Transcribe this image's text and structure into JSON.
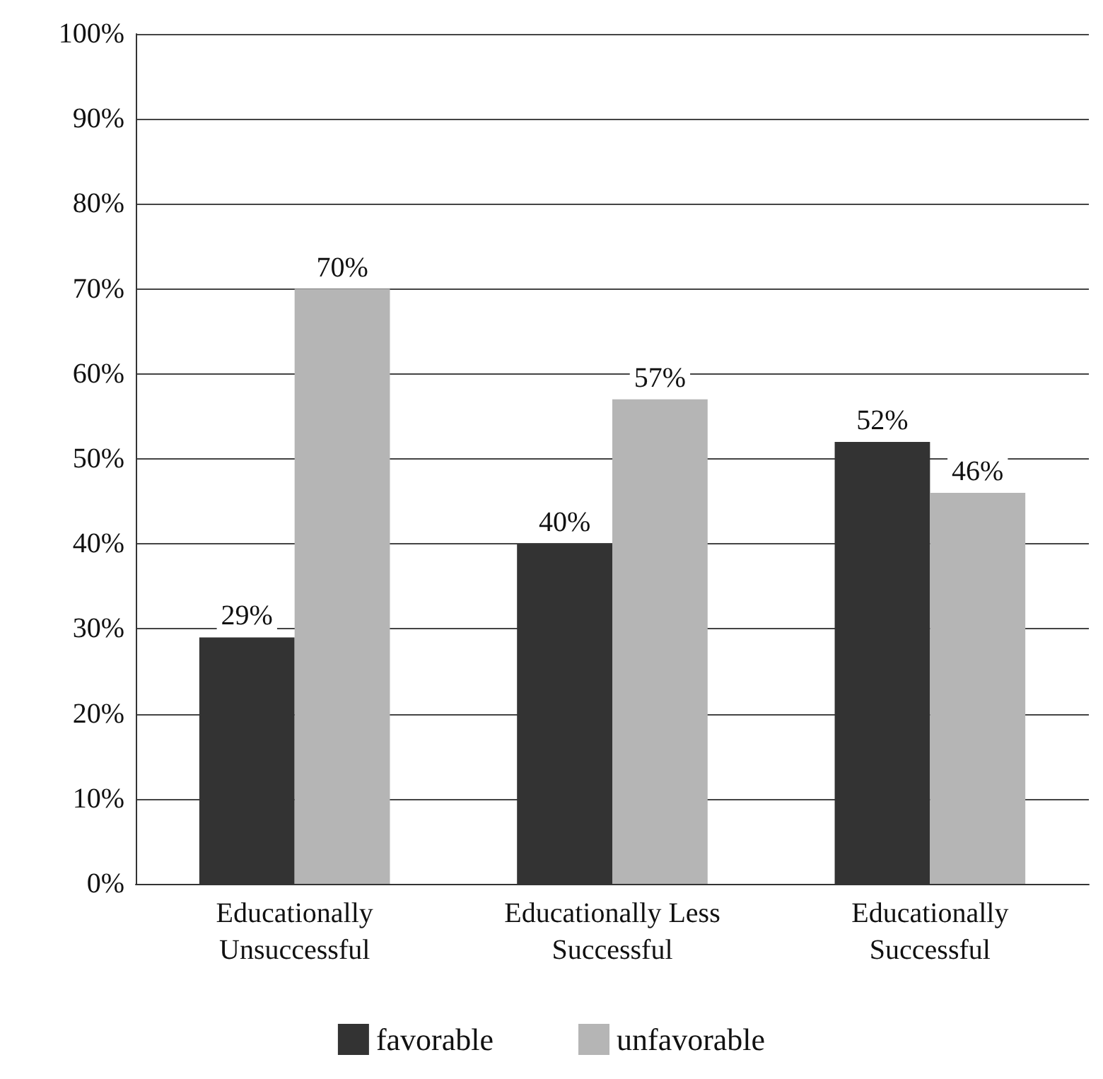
{
  "chart_data": {
    "type": "bar",
    "categories": [
      "Educationally\nUnsuccessful",
      "Educationally Less\nSuccessful",
      "Educationally\nSuccessful"
    ],
    "series": [
      {
        "name": "favorable",
        "color": "#333333",
        "values": [
          29,
          40,
          52
        ]
      },
      {
        "name": "unfavorable",
        "color": "#b5b5b5",
        "values": [
          70,
          57,
          46
        ]
      }
    ],
    "value_labels": [
      [
        "29%",
        "40%",
        "52%"
      ],
      [
        "70%",
        "57%",
        "46%"
      ]
    ],
    "ylim": [
      0,
      100
    ],
    "yticks": [
      {
        "value": 0,
        "label": "0%"
      },
      {
        "value": 10,
        "label": "10%"
      },
      {
        "value": 20,
        "label": "20%"
      },
      {
        "value": 30,
        "label": "30%"
      },
      {
        "value": 40,
        "label": "40%"
      },
      {
        "value": 50,
        "label": "50%"
      },
      {
        "value": 60,
        "label": "60%"
      },
      {
        "value": 70,
        "label": "70%"
      },
      {
        "value": 80,
        "label": "80%"
      },
      {
        "value": 90,
        "label": "90%"
      },
      {
        "value": 100,
        "label": "100%"
      }
    ],
    "grid": "y",
    "legend": "bottom"
  }
}
